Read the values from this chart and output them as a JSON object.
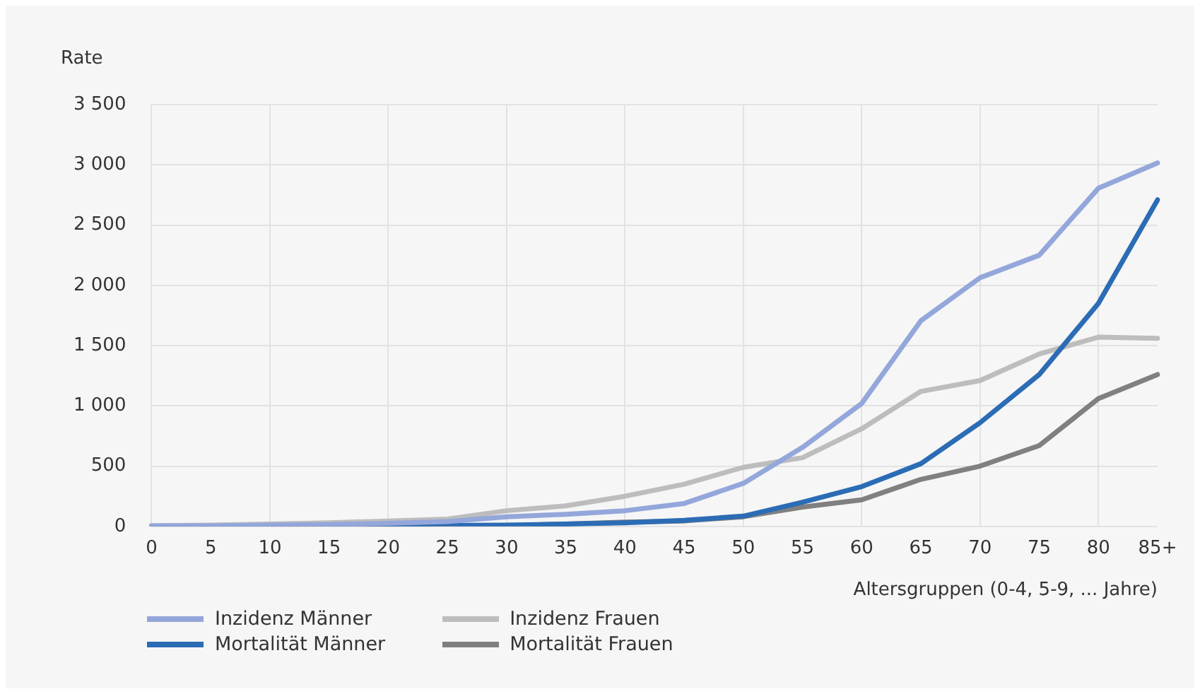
{
  "chart_data": {
    "type": "line",
    "ylabel": "Rate",
    "xlabel": "Altersgruppen (0-4, 5-9, ... Jahre)",
    "categories": [
      "0",
      "5",
      "10",
      "15",
      "20",
      "25",
      "30",
      "35",
      "40",
      "45",
      "50",
      "55",
      "60",
      "65",
      "70",
      "75",
      "80",
      "85+"
    ],
    "series": [
      {
        "name": "Inzidenz Männer",
        "color": "#94a7db",
        "values": [
          5,
          5,
          10,
          15,
          25,
          40,
          80,
          100,
          130,
          190,
          357,
          655,
          1020,
          1706,
          2063,
          2250,
          2806,
          3016
        ]
      },
      {
        "name": "Mortalität Männer",
        "color": "#2b6cb5",
        "values": [
          2,
          1,
          2,
          3,
          5,
          8,
          10,
          20,
          30,
          50,
          85,
          200,
          330,
          520,
          860,
          1260,
          1850,
          2710
        ]
      },
      {
        "name": "Inzidenz Frauen",
        "color": "#bdbdbd",
        "values": [
          5,
          10,
          20,
          30,
          45,
          60,
          130,
          170,
          250,
          350,
          490,
          570,
          810,
          1120,
          1210,
          1430,
          1570,
          1560
        ]
      },
      {
        "name": "Mortalität Frauen",
        "color": "#808080",
        "values": [
          2,
          2,
          3,
          4,
          5,
          6,
          5,
          20,
          35,
          45,
          80,
          160,
          220,
          390,
          500,
          670,
          1060,
          1260
        ]
      }
    ],
    "ylim": [
      0,
      3500
    ],
    "yticks": [
      0,
      500,
      {
        "value": 1000,
        "label": "1 000"
      },
      {
        "value": 1500,
        "label": "1 500"
      },
      {
        "value": 2000,
        "label": "2 000"
      },
      {
        "value": 2500,
        "label": "2 500"
      },
      {
        "value": 3000,
        "label": "3 000"
      },
      {
        "value": 3500,
        "label": "3 500"
      }
    ],
    "grid": true,
    "legend": "bottom left",
    "marker": "none",
    "line_style": "solid"
  }
}
